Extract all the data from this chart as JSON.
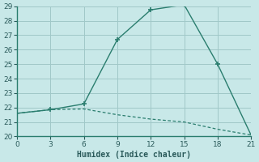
{
  "xlabel": "Humidex (Indice chaleur)",
  "background_color": "#c8e8e8",
  "grid_color": "#a0c8c8",
  "line_color": "#2a7d6e",
  "spine_color": "#2a7d6e",
  "tick_color": "#2a5a5a",
  "xlim": [
    0,
    21
  ],
  "ylim": [
    20,
    29
  ],
  "xticks": [
    0,
    3,
    6,
    9,
    12,
    15,
    18,
    21
  ],
  "yticks": [
    20,
    21,
    22,
    23,
    24,
    25,
    26,
    27,
    28,
    29
  ],
  "line1_x": [
    0,
    3,
    6,
    9,
    12,
    15,
    18,
    21
  ],
  "line1_y": [
    21.6,
    21.85,
    22.25,
    26.7,
    28.75,
    29.1,
    25.0,
    20.1
  ],
  "line1_marker_x": [
    3,
    6,
    9,
    12,
    15,
    18
  ],
  "line1_marker_y": [
    21.85,
    22.25,
    26.7,
    28.75,
    29.1,
    25.0
  ],
  "line2_x": [
    0,
    3,
    6,
    9,
    12,
    15,
    18,
    21
  ],
  "line2_y": [
    21.6,
    21.85,
    21.9,
    21.5,
    21.2,
    21.0,
    20.5,
    20.1
  ]
}
